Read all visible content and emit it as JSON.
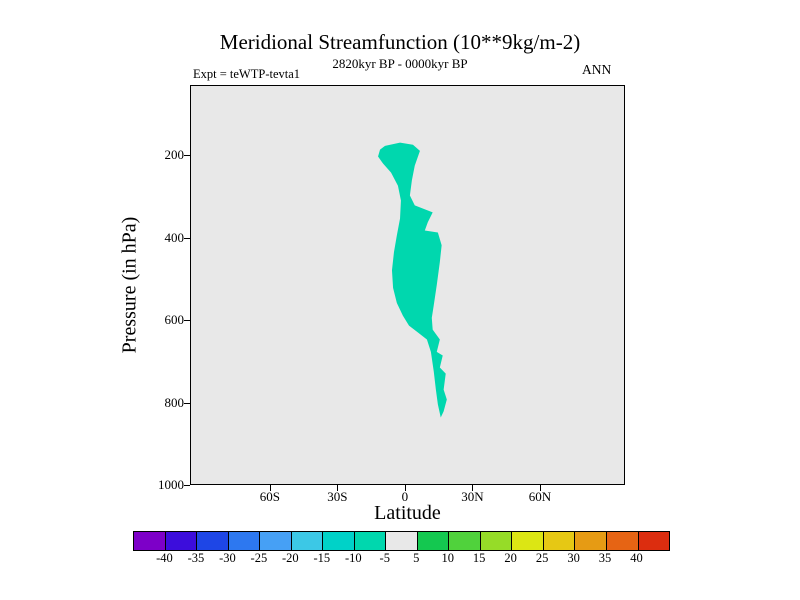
{
  "header": {
    "title": "Meridional Streamfunction (10**9kg/m-2)",
    "subtitle": "2820kyr BP - 0000kyr BP",
    "expt_label": "Expt = teWTP-tevta1",
    "season_label": "ANN"
  },
  "plot": {
    "xlabel": "Latitude",
    "ylabel": "Pressure (in hPa)",
    "background_color": "#e8e8e8",
    "frame_color": "#000000"
  },
  "chart_data": {
    "type": "contour",
    "title": "Meridional Streamfunction (10**9kg/m-2)",
    "subtitle": "2820kyr BP - 0000kyr BP",
    "annotations": [
      "Expt = teWTP-tevta1",
      "ANN"
    ],
    "xlabel": "Latitude",
    "ylabel": "Pressure (in hPa)",
    "x_axis": {
      "min": -95.5,
      "max": 97.8,
      "ticks": [
        {
          "value": -60,
          "label": "60S"
        },
        {
          "value": -30,
          "label": "30S"
        },
        {
          "value": 0,
          "label": "0"
        },
        {
          "value": 30,
          "label": "30N"
        },
        {
          "value": 60,
          "label": "60N"
        }
      ]
    },
    "y_axis": {
      "min": 30,
      "max": 1000,
      "ticks": [
        {
          "value": 200,
          "label": "200"
        },
        {
          "value": 400,
          "label": "400"
        },
        {
          "value": 600,
          "label": "600"
        },
        {
          "value": 800,
          "label": "800"
        },
        {
          "value": 1000,
          "label": "1000"
        }
      ]
    },
    "background_band": {
      "level_min": -5,
      "level_max": 5,
      "color": "#e8e8e8"
    },
    "filled_bands": [
      {
        "name": "streamfunction -10 to -5 band",
        "level_min": -10,
        "level_max": -5,
        "color": "#00d7ae",
        "polygon_lat_pressure": [
          [
            -8.9,
            176
          ],
          [
            -2.2,
            168
          ],
          [
            3.6,
            173
          ],
          [
            6.7,
            188
          ],
          [
            4.4,
            224
          ],
          [
            3.1,
            260
          ],
          [
            2.2,
            297
          ],
          [
            4.4,
            321
          ],
          [
            12.4,
            338
          ],
          [
            10.2,
            362
          ],
          [
            8.9,
            382
          ],
          [
            14.7,
            387
          ],
          [
            16.4,
            418
          ],
          [
            15.6,
            459
          ],
          [
            14.2,
            515
          ],
          [
            12.9,
            564
          ],
          [
            12.0,
            595
          ],
          [
            12.4,
            624
          ],
          [
            15.6,
            648
          ],
          [
            14.2,
            678
          ],
          [
            16.9,
            687
          ],
          [
            15.6,
            716
          ],
          [
            18.2,
            731
          ],
          [
            17.3,
            770
          ],
          [
            18.7,
            794
          ],
          [
            17.3,
            823
          ],
          [
            16.0,
            838
          ],
          [
            14.7,
            806
          ],
          [
            13.8,
            770
          ],
          [
            12.9,
            726
          ],
          [
            11.6,
            678
          ],
          [
            9.8,
            648
          ],
          [
            5.8,
            631
          ],
          [
            1.8,
            614
          ],
          [
            -0.9,
            590
          ],
          [
            -3.6,
            559
          ],
          [
            -5.3,
            522
          ],
          [
            -5.8,
            479
          ],
          [
            -4.9,
            435
          ],
          [
            -3.6,
            394
          ],
          [
            -2.2,
            353
          ],
          [
            -1.8,
            309
          ],
          [
            -3.1,
            273
          ],
          [
            -6.2,
            241
          ],
          [
            -9.8,
            219
          ],
          [
            -12.0,
            202
          ],
          [
            -11.1,
            185
          ]
        ]
      }
    ],
    "colorbar": {
      "labels": [
        "-40",
        "-35",
        "-30",
        "-25",
        "-20",
        "-15",
        "-10",
        "-5",
        "5",
        "10",
        "15",
        "20",
        "25",
        "30",
        "35",
        "40"
      ],
      "levels": [
        -40,
        -35,
        -30,
        -25,
        -20,
        -15,
        -10,
        -5,
        5,
        10,
        15,
        20,
        25,
        30,
        35,
        40
      ],
      "colors": [
        "#7d00c8",
        "#3c0ddc",
        "#1e46e6",
        "#2d78f0",
        "#46a0f5",
        "#3cc8e6",
        "#00d2c8",
        "#00d7ae",
        "#e8e8e8",
        "#14c850",
        "#50d23c",
        "#96dc28",
        "#dce614",
        "#e6c814",
        "#e69b14",
        "#e66414",
        "#dc2d0f"
      ]
    }
  }
}
